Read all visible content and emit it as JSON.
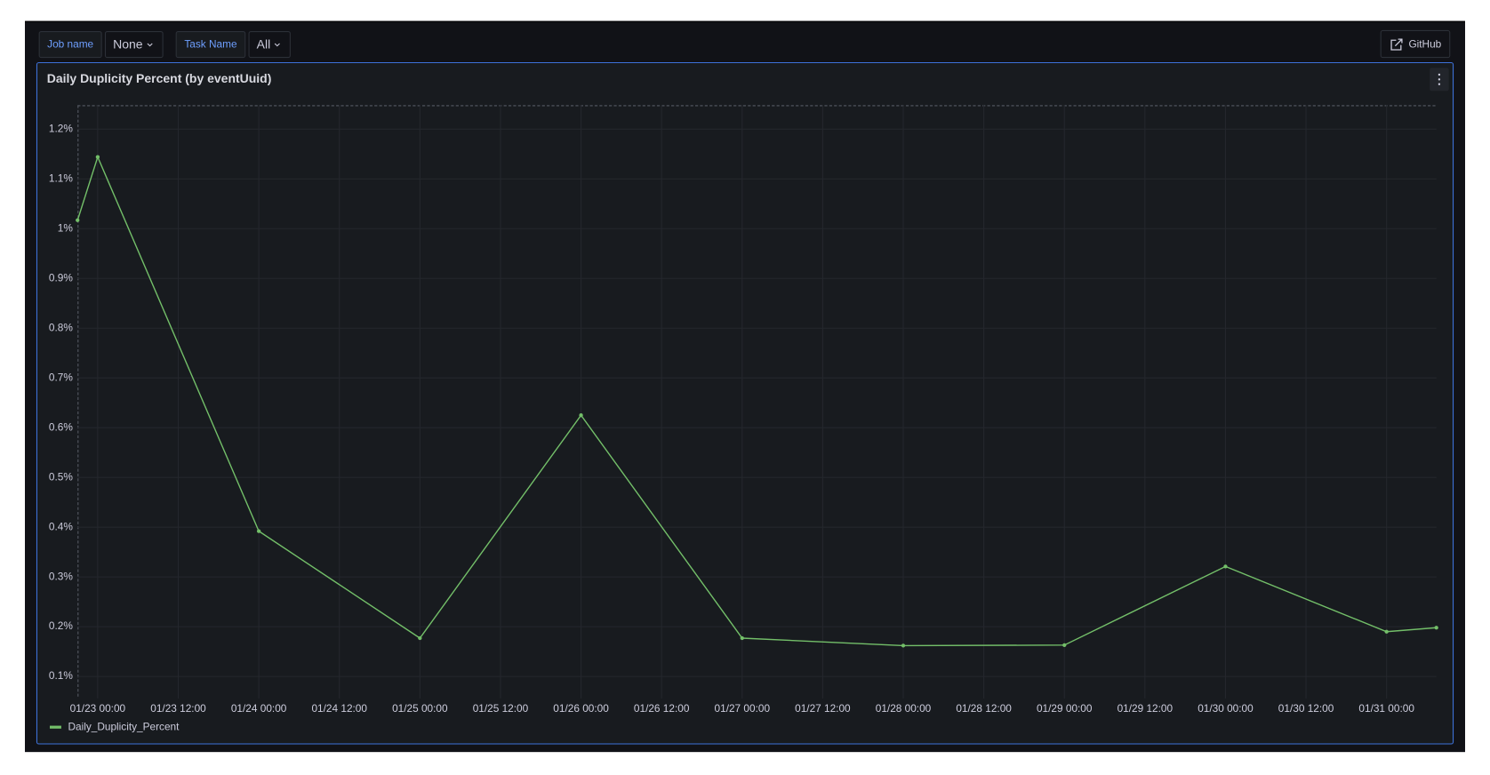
{
  "toolbar": {
    "variables": [
      {
        "label": "Job name",
        "value": "None"
      },
      {
        "label": "Task Name",
        "value": "All"
      }
    ],
    "github": "GitHub"
  },
  "chart_data": {
    "type": "line",
    "title": "Daily Duplicity Percent (by eventUuid)",
    "x": [
      "01/22 21:00",
      "01/23 00:00",
      "01/24 00:00",
      "01/25 00:00",
      "01/26 00:00",
      "01/27 00:00",
      "01/28 00:00",
      "01/29 00:00",
      "01/30 00:00",
      "01/31 00:00",
      "01/31 07:25"
    ],
    "series": [
      {
        "name": "Daily_Duplicity_Percent",
        "color": "#73bf69",
        "values": [
          1.017,
          1.144,
          0.392,
          0.177,
          0.625,
          0.177,
          0.162,
          0.163,
          0.321,
          0.19,
          0.198
        ]
      }
    ],
    "xlim": [
      "01/22 21:00",
      "01/31 07:25"
    ],
    "xticks": [
      "01/23 00:00",
      "01/23 12:00",
      "01/24 00:00",
      "01/24 12:00",
      "01/25 00:00",
      "01/25 12:00",
      "01/26 00:00",
      "01/26 12:00",
      "01/27 00:00",
      "01/27 12:00",
      "01/28 00:00",
      "01/28 12:00",
      "01/29 00:00",
      "01/29 12:00",
      "01/30 00:00",
      "01/30 12:00",
      "01/31 00:00"
    ],
    "ylim": [
      0.075,
      1.248
    ],
    "yticks": [
      {
        "value": 0.1,
        "label": "0.1%"
      },
      {
        "value": 0.2,
        "label": "0.2%"
      },
      {
        "value": 0.3,
        "label": "0.3%"
      },
      {
        "value": 0.4,
        "label": "0.4%"
      },
      {
        "value": 0.5,
        "label": "0.5%"
      },
      {
        "value": 0.6,
        "label": "0.6%"
      },
      {
        "value": 0.7,
        "label": "0.7%"
      },
      {
        "value": 0.8,
        "label": "0.8%"
      },
      {
        "value": 0.9,
        "label": "0.9%"
      },
      {
        "value": 1,
        "label": "1%"
      },
      {
        "value": 1.1,
        "label": "1.1%"
      },
      {
        "value": 1.2,
        "label": "1.2%"
      }
    ],
    "grid": true
  }
}
